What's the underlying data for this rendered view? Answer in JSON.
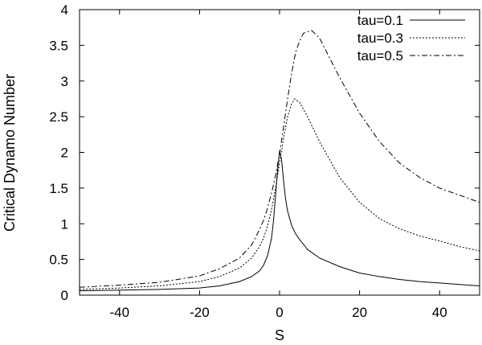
{
  "chart_data": {
    "type": "line",
    "title": "",
    "xlabel": "S",
    "ylabel": "Critical Dynamo Number",
    "xlim": [
      -50,
      50
    ],
    "ylim": [
      0,
      4
    ],
    "xticks": [
      -40,
      -20,
      0,
      20,
      40
    ],
    "yticks": [
      0,
      0.5,
      1,
      1.5,
      2,
      2.5,
      3,
      3.5,
      4
    ],
    "grid": false,
    "legend_position": "top-right",
    "series": [
      {
        "name": "tau=0.1",
        "style": "solid",
        "points": [
          [
            -50,
            0.06
          ],
          [
            -40,
            0.07
          ],
          [
            -30,
            0.08
          ],
          [
            -20,
            0.1
          ],
          [
            -15,
            0.13
          ],
          [
            -10,
            0.19
          ],
          [
            -7,
            0.26
          ],
          [
            -5,
            0.34
          ],
          [
            -4,
            0.42
          ],
          [
            -3,
            0.55
          ],
          [
            -2,
            0.8
          ],
          [
            -1.5,
            1.05
          ],
          [
            -1,
            1.4
          ],
          [
            -0.5,
            1.75
          ],
          [
            0,
            2.02
          ],
          [
            0.5,
            1.9
          ],
          [
            1,
            1.6
          ],
          [
            1.5,
            1.35
          ],
          [
            2,
            1.18
          ],
          [
            3,
            0.98
          ],
          [
            4,
            0.86
          ],
          [
            5,
            0.78
          ],
          [
            7,
            0.64
          ],
          [
            10,
            0.52
          ],
          [
            15,
            0.4
          ],
          [
            20,
            0.31
          ],
          [
            25,
            0.26
          ],
          [
            30,
            0.22
          ],
          [
            35,
            0.19
          ],
          [
            40,
            0.17
          ],
          [
            45,
            0.15
          ],
          [
            50,
            0.13
          ]
        ]
      },
      {
        "name": "tau=0.3",
        "style": "dotted",
        "points": [
          [
            -50,
            0.08
          ],
          [
            -40,
            0.1
          ],
          [
            -30,
            0.13
          ],
          [
            -20,
            0.19
          ],
          [
            -15,
            0.26
          ],
          [
            -10,
            0.38
          ],
          [
            -7,
            0.52
          ],
          [
            -5,
            0.68
          ],
          [
            -4,
            0.8
          ],
          [
            -3,
            0.97
          ],
          [
            -2,
            1.2
          ],
          [
            -1,
            1.5
          ],
          [
            0,
            1.85
          ],
          [
            1,
            2.2
          ],
          [
            2,
            2.5
          ],
          [
            3,
            2.68
          ],
          [
            3.8,
            2.75
          ],
          [
            5,
            2.7
          ],
          [
            7,
            2.5
          ],
          [
            10,
            2.15
          ],
          [
            15,
            1.65
          ],
          [
            20,
            1.3
          ],
          [
            25,
            1.07
          ],
          [
            30,
            0.93
          ],
          [
            35,
            0.83
          ],
          [
            40,
            0.76
          ],
          [
            45,
            0.68
          ],
          [
            50,
            0.62
          ]
        ]
      },
      {
        "name": "tau=0.5",
        "style": "dashdot",
        "points": [
          [
            -50,
            0.11
          ],
          [
            -40,
            0.14
          ],
          [
            -30,
            0.18
          ],
          [
            -20,
            0.27
          ],
          [
            -15,
            0.37
          ],
          [
            -10,
            0.52
          ],
          [
            -7,
            0.7
          ],
          [
            -5,
            0.92
          ],
          [
            -4,
            1.05
          ],
          [
            -3,
            1.22
          ],
          [
            -2,
            1.43
          ],
          [
            -1,
            1.68
          ],
          [
            0,
            1.98
          ],
          [
            1,
            2.35
          ],
          [
            2,
            2.75
          ],
          [
            3,
            3.1
          ],
          [
            4,
            3.4
          ],
          [
            5,
            3.56
          ],
          [
            6,
            3.67
          ],
          [
            8,
            3.71
          ],
          [
            10,
            3.6
          ],
          [
            12,
            3.38
          ],
          [
            15,
            3.05
          ],
          [
            20,
            2.55
          ],
          [
            25,
            2.15
          ],
          [
            30,
            1.85
          ],
          [
            35,
            1.65
          ],
          [
            40,
            1.5
          ],
          [
            45,
            1.4
          ],
          [
            50,
            1.3
          ]
        ]
      }
    ]
  }
}
